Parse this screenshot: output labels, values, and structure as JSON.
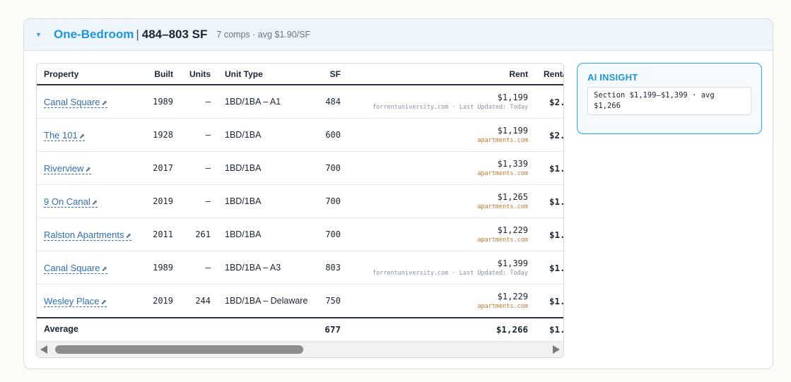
{
  "header": {
    "title": "One-Bedroom",
    "separator": "|",
    "range": "484–803 SF",
    "meta": "7 comps · avg $1.90/SF"
  },
  "table": {
    "columns": [
      "Property",
      "Built",
      "Units",
      "Unit Type",
      "SF",
      "Rent",
      "Rent/"
    ],
    "rows": [
      {
        "property": "Canal Square",
        "built": "1989",
        "units": "—",
        "unit_type": "1BD/1BA – A1",
        "sf": "484",
        "rent": "$1,199",
        "source": "forrentuniversity.com · Last Updated: Today",
        "source_kind": "gray",
        "rent_sf": "$2."
      },
      {
        "property": "The 101",
        "built": "1928",
        "units": "—",
        "unit_type": "1BD/1BA",
        "sf": "600",
        "rent": "$1,199",
        "source": "apartments.com",
        "source_kind": "orange",
        "rent_sf": "$2."
      },
      {
        "property": "Riverview",
        "built": "2017",
        "units": "—",
        "unit_type": "1BD/1BA",
        "sf": "700",
        "rent": "$1,339",
        "source": "apartments.com",
        "source_kind": "orange",
        "rent_sf": "$1."
      },
      {
        "property": "9 On Canal",
        "built": "2019",
        "units": "—",
        "unit_type": "1BD/1BA",
        "sf": "700",
        "rent": "$1,265",
        "source": "apartments.com",
        "source_kind": "orange",
        "rent_sf": "$1."
      },
      {
        "property": "Ralston Apartments",
        "built": "2011",
        "units": "261",
        "unit_type": "1BD/1BA",
        "sf": "700",
        "rent": "$1,229",
        "source": "apartments.com",
        "source_kind": "orange",
        "rent_sf": "$1."
      },
      {
        "property": "Canal Square",
        "built": "1989",
        "units": "—",
        "unit_type": "1BD/1BA – A3",
        "sf": "803",
        "rent": "$1,399",
        "source": "forrentuniversity.com · Last Updated: Today",
        "source_kind": "gray",
        "rent_sf": "$1."
      },
      {
        "property": "Wesley Place",
        "built": "2019",
        "units": "244",
        "unit_type": "1BD/1BA – Delaware",
        "sf": "750",
        "rent": "$1,229",
        "source": "apartments.com",
        "source_kind": "orange",
        "rent_sf": "$1."
      }
    ],
    "average": {
      "label": "Average",
      "sf": "677",
      "rent": "$1,266",
      "rent_sf": "$1."
    },
    "link_icon": "external-link-icon"
  },
  "insight": {
    "title": "AI INSIGHT",
    "body": "Section $1,199–$1,399 · avg $1,266"
  },
  "colors": {
    "accent": "#1f95dc",
    "link": "#2f6fb0",
    "source_orange": "#c6782a",
    "source_gray": "#8a939e",
    "header_bg": "#eef5fb"
  }
}
